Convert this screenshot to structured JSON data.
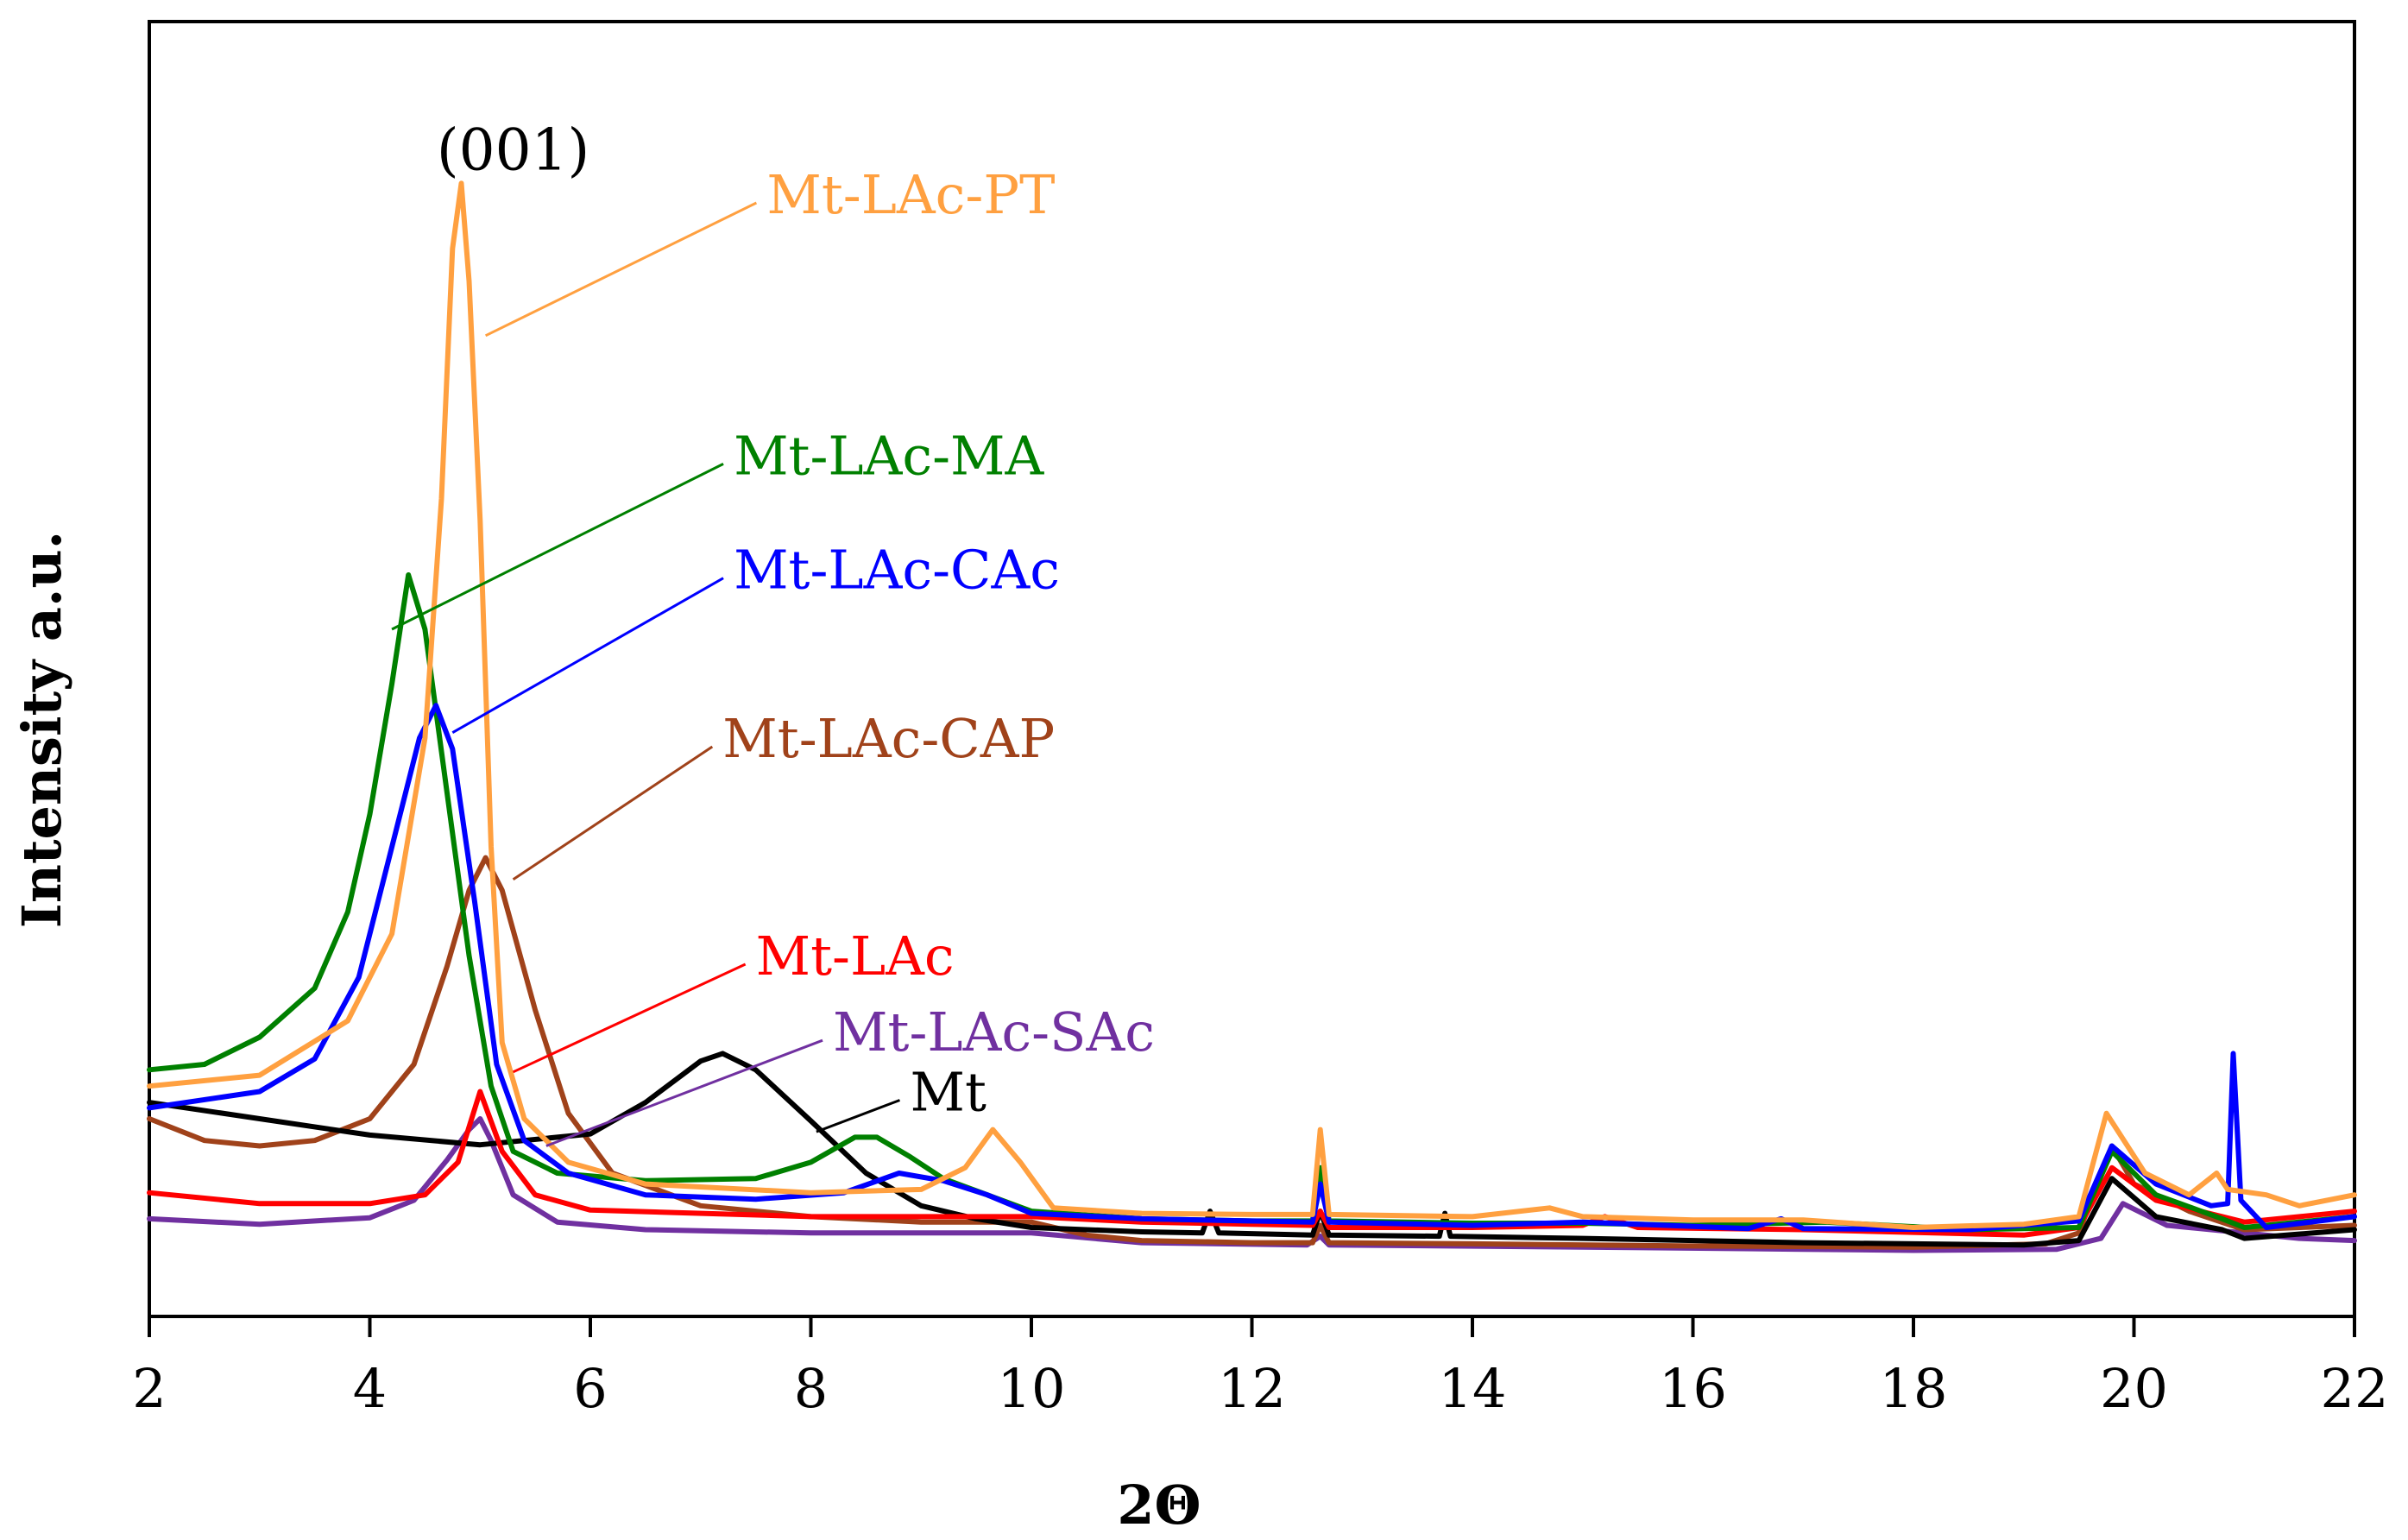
{
  "chart_data": {
    "type": "line",
    "title": "",
    "xlabel": "2Θ",
    "ylabel": "Intensity a.u.",
    "xlim": [
      2,
      22
    ],
    "ylim": [
      0,
      100
    ],
    "xticks": [
      "2",
      "4",
      "6",
      "8",
      "10",
      "12",
      "14",
      "16",
      "18",
      "20",
      "22"
    ],
    "grid": false,
    "legend_placement": "inline labels with leader lines",
    "annotations": [
      {
        "text": "(001)",
        "x": 5.3,
        "y": 104
      }
    ],
    "series": [
      {
        "name": "Mt",
        "color": "#000000",
        "label_x": 8.9,
        "label_y": 17.5,
        "leader_to": [
          8.05,
          13.8
        ],
        "points": [
          [
            2,
            16.5
          ],
          [
            3,
            15
          ],
          [
            4,
            13.5
          ],
          [
            5,
            12.6
          ],
          [
            6,
            13.6
          ],
          [
            6.5,
            16.5
          ],
          [
            7,
            20.3
          ],
          [
            7.2,
            21
          ],
          [
            7.5,
            19.5
          ],
          [
            8,
            14.8
          ],
          [
            8.5,
            10
          ],
          [
            9,
            7
          ],
          [
            9.5,
            5.8
          ],
          [
            10,
            5
          ],
          [
            11,
            4.6
          ],
          [
            11.55,
            4.5
          ],
          [
            11.62,
            6.5
          ],
          [
            11.7,
            4.5
          ],
          [
            12.55,
            4.3
          ],
          [
            12.62,
            6.5
          ],
          [
            12.7,
            4.3
          ],
          [
            13.7,
            4.2
          ],
          [
            13.75,
            6.3
          ],
          [
            13.8,
            4.2
          ],
          [
            15,
            4
          ],
          [
            17,
            3.6
          ],
          [
            19,
            3.4
          ],
          [
            19.5,
            3.8
          ],
          [
            19.8,
            9.5
          ],
          [
            20.2,
            6
          ],
          [
            20.8,
            4.8
          ],
          [
            21,
            4
          ],
          [
            22,
            4.8
          ]
        ]
      },
      {
        "name": "Mt-LAc",
        "color": "#ff0000",
        "label_x": 7.5,
        "label_y": 30,
        "leader_to": [
          5.3,
          19.3
        ],
        "points": [
          [
            2,
            8.2
          ],
          [
            3,
            7.2
          ],
          [
            4,
            7.2
          ],
          [
            4.5,
            8
          ],
          [
            4.8,
            11
          ],
          [
            5,
            17.5
          ],
          [
            5.2,
            12
          ],
          [
            5.5,
            8
          ],
          [
            6,
            6.6
          ],
          [
            8,
            6
          ],
          [
            10,
            6
          ],
          [
            11,
            5.5
          ],
          [
            12,
            5.3
          ],
          [
            12.55,
            5.2
          ],
          [
            12.62,
            6.5
          ],
          [
            12.7,
            5
          ],
          [
            14,
            5
          ],
          [
            15,
            5.2
          ],
          [
            15.2,
            6
          ],
          [
            15.5,
            5
          ],
          [
            17,
            4.8
          ],
          [
            19,
            4.3
          ],
          [
            19.5,
            5
          ],
          [
            19.8,
            10.5
          ],
          [
            20.2,
            7.5
          ],
          [
            21,
            5.5
          ],
          [
            22,
            6.5
          ]
        ]
      },
      {
        "name": "Mt-LAc-MA",
        "color": "#008000",
        "label_x": 7.3,
        "label_y": 76,
        "leader_to": [
          4.2,
          60
        ],
        "points": [
          [
            2,
            19.5
          ],
          [
            2.5,
            20
          ],
          [
            3,
            22.5
          ],
          [
            3.5,
            27
          ],
          [
            3.8,
            34
          ],
          [
            4,
            43
          ],
          [
            4.2,
            55
          ],
          [
            4.35,
            65
          ],
          [
            4.5,
            60
          ],
          [
            4.7,
            45
          ],
          [
            4.9,
            30
          ],
          [
            5.1,
            18
          ],
          [
            5.3,
            12
          ],
          [
            5.7,
            10
          ],
          [
            6.5,
            9.3
          ],
          [
            7.5,
            9.5
          ],
          [
            8,
            11
          ],
          [
            8.4,
            13.3
          ],
          [
            8.6,
            13.3
          ],
          [
            8.9,
            11.5
          ],
          [
            9.2,
            9.5
          ],
          [
            9.6,
            8
          ],
          [
            10,
            6.5
          ],
          [
            11,
            5.8
          ],
          [
            12,
            5.6
          ],
          [
            12.55,
            5.6
          ],
          [
            12.62,
            10.5
          ],
          [
            12.7,
            5.6
          ],
          [
            14,
            5.4
          ],
          [
            15,
            5.4
          ],
          [
            16,
            5.2
          ],
          [
            17.2,
            5.5
          ],
          [
            18.5,
            4.8
          ],
          [
            19.5,
            5
          ],
          [
            19.8,
            12
          ],
          [
            20.2,
            8
          ],
          [
            20.8,
            5.8
          ],
          [
            21,
            5
          ],
          [
            22,
            6
          ]
        ]
      },
      {
        "name": "Mt-LAc-CAc",
        "color": "#0000ff",
        "label_x": 7.3,
        "label_y": 65.5,
        "leader_to": [
          4.75,
          50.5
        ],
        "points": [
          [
            2,
            16
          ],
          [
            3,
            17.5
          ],
          [
            3.5,
            20.5
          ],
          [
            3.9,
            28
          ],
          [
            4.2,
            40
          ],
          [
            4.45,
            50
          ],
          [
            4.6,
            53
          ],
          [
            4.75,
            49
          ],
          [
            4.95,
            35
          ],
          [
            5.15,
            20
          ],
          [
            5.4,
            13
          ],
          [
            5.8,
            10
          ],
          [
            6.5,
            8
          ],
          [
            7.5,
            7.6
          ],
          [
            8.3,
            8.2
          ],
          [
            8.8,
            10
          ],
          [
            9.2,
            9.3
          ],
          [
            9.6,
            8
          ],
          [
            10,
            6.3
          ],
          [
            11,
            5.8
          ],
          [
            12.55,
            5.5
          ],
          [
            12.62,
            9
          ],
          [
            12.7,
            5.5
          ],
          [
            14,
            5.2
          ],
          [
            15,
            5.5
          ],
          [
            16.5,
            4.9
          ],
          [
            16.8,
            5.8
          ],
          [
            17,
            4.9
          ],
          [
            18.5,
            4.8
          ],
          [
            19.5,
            5.6
          ],
          [
            19.8,
            12.5
          ],
          [
            20.2,
            9
          ],
          [
            20.7,
            7
          ],
          [
            20.85,
            7.2
          ],
          [
            20.9,
            21
          ],
          [
            20.97,
            7.5
          ],
          [
            21.2,
            5
          ],
          [
            22,
            6
          ]
        ]
      },
      {
        "name": "Mt-LAc-CAP",
        "color": "#a0421a",
        "label_x": 7.2,
        "label_y": 50,
        "leader_to": [
          5.3,
          37
        ],
        "points": [
          [
            2,
            15
          ],
          [
            2.5,
            13
          ],
          [
            3,
            12.5
          ],
          [
            3.5,
            13
          ],
          [
            4,
            15
          ],
          [
            4.4,
            20
          ],
          [
            4.7,
            29
          ],
          [
            4.9,
            36
          ],
          [
            5.05,
            39
          ],
          [
            5.2,
            36
          ],
          [
            5.5,
            25
          ],
          [
            5.8,
            15.5
          ],
          [
            6.2,
            10
          ],
          [
            7,
            7
          ],
          [
            8,
            6
          ],
          [
            9,
            5.5
          ],
          [
            10,
            5.5
          ],
          [
            10.5,
            4.3
          ],
          [
            11,
            3.8
          ],
          [
            12,
            3.6
          ],
          [
            12.55,
            3.6
          ],
          [
            12.62,
            5.2
          ],
          [
            12.7,
            3.6
          ],
          [
            14,
            3.5
          ],
          [
            16,
            3.3
          ],
          [
            18,
            3.2
          ],
          [
            19.2,
            3.5
          ],
          [
            19.5,
            4.5
          ],
          [
            19.8,
            12.5
          ],
          [
            20,
            9
          ],
          [
            20.5,
            6.5
          ],
          [
            21,
            4.8
          ],
          [
            22,
            5.2
          ]
        ]
      },
      {
        "name": "Mt-LAc-PT",
        "color": "#ffa040",
        "label_x": 7.6,
        "label_y": 100,
        "leader_to": [
          5.05,
          87
        ],
        "points": [
          [
            2,
            18
          ],
          [
            3,
            19
          ],
          [
            3.8,
            24
          ],
          [
            4.2,
            32
          ],
          [
            4.5,
            50
          ],
          [
            4.65,
            72
          ],
          [
            4.75,
            95
          ],
          [
            4.83,
            101
          ],
          [
            4.9,
            92
          ],
          [
            5.0,
            70
          ],
          [
            5.1,
            40
          ],
          [
            5.2,
            22
          ],
          [
            5.4,
            15
          ],
          [
            5.8,
            11
          ],
          [
            6.5,
            9
          ],
          [
            8,
            8.2
          ],
          [
            9,
            8.5
          ],
          [
            9.4,
            10.5
          ],
          [
            9.65,
            14
          ],
          [
            9.9,
            11
          ],
          [
            10.2,
            6.8
          ],
          [
            11,
            6.3
          ],
          [
            12,
            6.2
          ],
          [
            12.55,
            6.2
          ],
          [
            12.62,
            14
          ],
          [
            12.7,
            6.2
          ],
          [
            14,
            6
          ],
          [
            14.7,
            6.8
          ],
          [
            15,
            6
          ],
          [
            16,
            5.7
          ],
          [
            17,
            5.7
          ],
          [
            18,
            5
          ],
          [
            19,
            5.3
          ],
          [
            19.5,
            6
          ],
          [
            19.75,
            15.5
          ],
          [
            20.1,
            10
          ],
          [
            20.5,
            8
          ],
          [
            20.75,
            10
          ],
          [
            20.85,
            8.5
          ],
          [
            21.2,
            8
          ],
          [
            21.5,
            7
          ],
          [
            22,
            8
          ]
        ]
      },
      {
        "name": "Mt-LAc-SAc",
        "color": "#7030a0",
        "label_x": 8.2,
        "label_y": 23,
        "leader_to": [
          5.6,
          12.5
        ],
        "points": [
          [
            2,
            5.8
          ],
          [
            3,
            5.3
          ],
          [
            4,
            5.9
          ],
          [
            4.4,
            7.5
          ],
          [
            4.7,
            11.2
          ],
          [
            4.9,
            14
          ],
          [
            5,
            15
          ],
          [
            5.1,
            13
          ],
          [
            5.3,
            8
          ],
          [
            5.7,
            5.5
          ],
          [
            6.5,
            4.8
          ],
          [
            8,
            4.5
          ],
          [
            10,
            4.5
          ],
          [
            11,
            3.6
          ],
          [
            12.5,
            3.4
          ],
          [
            12.62,
            4.2
          ],
          [
            12.7,
            3.4
          ],
          [
            15,
            3.2
          ],
          [
            17,
            3
          ],
          [
            18,
            2.9
          ],
          [
            19.3,
            3
          ],
          [
            19.7,
            4
          ],
          [
            19.9,
            7.2
          ],
          [
            20.3,
            5.2
          ],
          [
            21,
            4.5
          ],
          [
            21.5,
            4
          ],
          [
            22,
            3.8
          ]
        ]
      }
    ]
  }
}
